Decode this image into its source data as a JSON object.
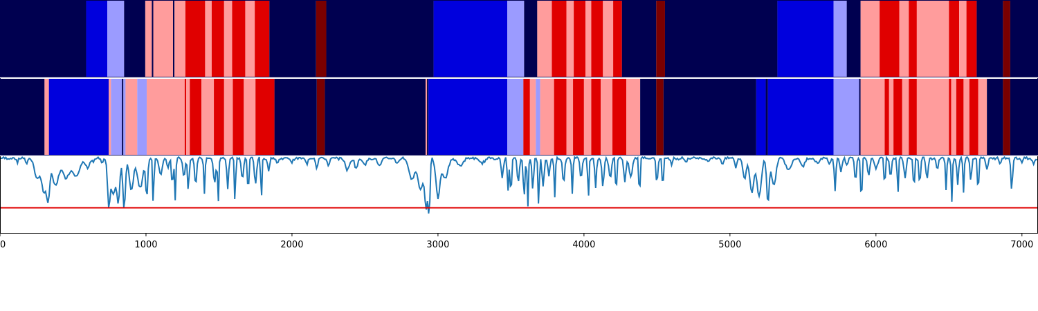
{
  "colors": {
    "dark_navy": "#000050",
    "blue": "#0000dd",
    "light_blue": "#9b9bff",
    "pink": "#ff9c9c",
    "red": "#e00000",
    "dark_red": "#7a0000",
    "line": "#1f77b4",
    "threshold": "#e00000"
  },
  "chart_data": {
    "type": "area",
    "xlim": [
      0,
      7110
    ],
    "x_ticks": [
      "0",
      "1000",
      "2000",
      "3000",
      "4000",
      "5000",
      "6000",
      "7000"
    ],
    "x_tick_values": [
      0,
      1000,
      2000,
      3000,
      4000,
      5000,
      6000,
      7000
    ],
    "state_tracks": [
      {
        "segments": [
          [
            0,
            590,
            "dark_navy"
          ],
          [
            590,
            735,
            "blue"
          ],
          [
            735,
            850,
            "light_blue"
          ],
          [
            850,
            995,
            "dark_navy"
          ],
          [
            995,
            1040,
            "pink"
          ],
          [
            1040,
            1050,
            "dark_navy"
          ],
          [
            1050,
            1185,
            "pink"
          ],
          [
            1185,
            1195,
            "dark_navy"
          ],
          [
            1195,
            1270,
            "pink"
          ],
          [
            1270,
            1405,
            "red"
          ],
          [
            1405,
            1450,
            "pink"
          ],
          [
            1450,
            1535,
            "red"
          ],
          [
            1535,
            1590,
            "pink"
          ],
          [
            1590,
            1680,
            "red"
          ],
          [
            1680,
            1745,
            "pink"
          ],
          [
            1745,
            1845,
            "red"
          ],
          [
            1845,
            2165,
            "dark_navy"
          ],
          [
            2165,
            2235,
            "dark_red"
          ],
          [
            2235,
            2970,
            "dark_navy"
          ],
          [
            2970,
            3475,
            "blue"
          ],
          [
            3475,
            3590,
            "light_blue"
          ],
          [
            3590,
            3680,
            "dark_navy"
          ],
          [
            3680,
            3780,
            "pink"
          ],
          [
            3780,
            3880,
            "red"
          ],
          [
            3880,
            3930,
            "pink"
          ],
          [
            3930,
            4010,
            "red"
          ],
          [
            4010,
            4050,
            "pink"
          ],
          [
            4050,
            4130,
            "red"
          ],
          [
            4130,
            4200,
            "pink"
          ],
          [
            4200,
            4260,
            "red"
          ],
          [
            4260,
            4495,
            "dark_navy"
          ],
          [
            4495,
            4555,
            "dark_red"
          ],
          [
            4555,
            5325,
            "dark_navy"
          ],
          [
            5325,
            5710,
            "blue"
          ],
          [
            5710,
            5800,
            "light_blue"
          ],
          [
            5800,
            5895,
            "dark_navy"
          ],
          [
            5895,
            6025,
            "pink"
          ],
          [
            6025,
            6160,
            "red"
          ],
          [
            6160,
            6225,
            "pink"
          ],
          [
            6225,
            6280,
            "red"
          ],
          [
            6280,
            6500,
            "pink"
          ],
          [
            6500,
            6570,
            "red"
          ],
          [
            6570,
            6620,
            "pink"
          ],
          [
            6620,
            6690,
            "red"
          ],
          [
            6690,
            6870,
            "dark_navy"
          ],
          [
            6870,
            6920,
            "dark_red"
          ],
          [
            6920,
            7110,
            "dark_navy"
          ]
        ]
      },
      {
        "segments": [
          [
            0,
            305,
            "dark_navy"
          ],
          [
            305,
            335,
            "pink"
          ],
          [
            335,
            745,
            "blue"
          ],
          [
            745,
            760,
            "pink"
          ],
          [
            760,
            835,
            "light_blue"
          ],
          [
            835,
            845,
            "dark_navy"
          ],
          [
            845,
            860,
            "light_blue"
          ],
          [
            860,
            940,
            "pink"
          ],
          [
            940,
            1005,
            "light_blue"
          ],
          [
            1005,
            1265,
            "pink"
          ],
          [
            1265,
            1275,
            "red"
          ],
          [
            1275,
            1300,
            "pink"
          ],
          [
            1300,
            1380,
            "red"
          ],
          [
            1380,
            1465,
            "pink"
          ],
          [
            1465,
            1535,
            "red"
          ],
          [
            1535,
            1595,
            "pink"
          ],
          [
            1595,
            1670,
            "red"
          ],
          [
            1670,
            1750,
            "pink"
          ],
          [
            1750,
            1880,
            "red"
          ],
          [
            1880,
            2170,
            "dark_navy"
          ],
          [
            2170,
            2225,
            "dark_red"
          ],
          [
            2225,
            2915,
            "dark_navy"
          ],
          [
            2915,
            2925,
            "pink"
          ],
          [
            2925,
            2935,
            "dark_navy"
          ],
          [
            2935,
            3475,
            "blue"
          ],
          [
            3475,
            3585,
            "light_blue"
          ],
          [
            3585,
            3630,
            "red"
          ],
          [
            3630,
            3670,
            "pink"
          ],
          [
            3670,
            3700,
            "light_blue"
          ],
          [
            3700,
            3795,
            "pink"
          ],
          [
            3795,
            3880,
            "red"
          ],
          [
            3880,
            3925,
            "pink"
          ],
          [
            3925,
            4000,
            "red"
          ],
          [
            4000,
            4050,
            "pink"
          ],
          [
            4050,
            4115,
            "red"
          ],
          [
            4115,
            4195,
            "pink"
          ],
          [
            4195,
            4290,
            "red"
          ],
          [
            4290,
            4385,
            "pink"
          ],
          [
            4385,
            4495,
            "dark_navy"
          ],
          [
            4495,
            4545,
            "dark_red"
          ],
          [
            4545,
            5180,
            "dark_navy"
          ],
          [
            5180,
            5245,
            "blue"
          ],
          [
            5245,
            5260,
            "dark_navy"
          ],
          [
            5260,
            5710,
            "blue"
          ],
          [
            5710,
            5885,
            "light_blue"
          ],
          [
            5885,
            5895,
            "dark_navy"
          ],
          [
            5895,
            6060,
            "pink"
          ],
          [
            6060,
            6090,
            "red"
          ],
          [
            6090,
            6120,
            "pink"
          ],
          [
            6120,
            6180,
            "red"
          ],
          [
            6180,
            6225,
            "pink"
          ],
          [
            6225,
            6280,
            "red"
          ],
          [
            6280,
            6500,
            "pink"
          ],
          [
            6500,
            6515,
            "red"
          ],
          [
            6515,
            6550,
            "pink"
          ],
          [
            6550,
            6600,
            "red"
          ],
          [
            6600,
            6640,
            "pink"
          ],
          [
            6640,
            6700,
            "red"
          ],
          [
            6700,
            6760,
            "pink"
          ],
          [
            6760,
            6870,
            "dark_navy"
          ],
          [
            6870,
            6920,
            "dark_red"
          ],
          [
            6920,
            7110,
            "dark_navy"
          ]
        ]
      }
    ],
    "line_series": {
      "ylim": [
        -0.05,
        1.0
      ],
      "threshold": 0.3,
      "baseline": 0.98,
      "dips": [
        [
          120,
          0.92,
          8
        ],
        [
          180,
          0.9,
          10
        ],
        [
          255,
          0.7,
          25
        ],
        [
          300,
          0.52,
          20
        ],
        [
          330,
          0.45,
          15
        ],
        [
          380,
          0.6,
          30
        ],
        [
          450,
          0.72,
          30
        ],
        [
          520,
          0.75,
          40
        ],
        [
          600,
          0.85,
          20
        ],
        [
          640,
          0.93,
          12
        ],
        [
          700,
          0.9,
          10
        ],
        [
          745,
          0.35,
          12
        ],
        [
          775,
          0.48,
          20
        ],
        [
          810,
          0.4,
          15
        ],
        [
          850,
          0.28,
          12
        ],
        [
          900,
          0.55,
          20
        ],
        [
          960,
          0.58,
          25
        ],
        [
          1005,
          0.45,
          10
        ],
        [
          1050,
          0.32,
          6
        ],
        [
          1100,
          0.75,
          15
        ],
        [
          1150,
          0.85,
          10
        ],
        [
          1180,
          0.6,
          8
        ],
        [
          1200,
          0.42,
          6
        ],
        [
          1260,
          0.72,
          10
        ],
        [
          1290,
          0.55,
          8
        ],
        [
          1340,
          0.62,
          10
        ],
        [
          1400,
          0.48,
          6
        ],
        [
          1470,
          0.65,
          12
        ],
        [
          1495,
          0.38,
          6
        ],
        [
          1560,
          0.55,
          8
        ],
        [
          1610,
          0.38,
          6
        ],
        [
          1660,
          0.68,
          10
        ],
        [
          1700,
          0.45,
          6
        ],
        [
          1750,
          0.62,
          10
        ],
        [
          1790,
          0.4,
          6
        ],
        [
          1840,
          0.82,
          10
        ],
        [
          1900,
          0.9,
          10
        ],
        [
          2000,
          0.92,
          10
        ],
        [
          2100,
          0.9,
          10
        ],
        [
          2170,
          0.85,
          10
        ],
        [
          2250,
          0.88,
          12
        ],
        [
          2380,
          0.82,
          20
        ],
        [
          2440,
          0.84,
          15
        ],
        [
          2500,
          0.9,
          20
        ],
        [
          2600,
          0.88,
          20
        ],
        [
          2720,
          0.92,
          15
        ],
        [
          2820,
          0.68,
          25
        ],
        [
          2880,
          0.55,
          25
        ],
        [
          2920,
          0.32,
          15
        ],
        [
          2940,
          0.3,
          8
        ],
        [
          3000,
          0.45,
          20
        ],
        [
          3050,
          0.7,
          25
        ],
        [
          3150,
          0.88,
          30
        ],
        [
          3300,
          0.92,
          30
        ],
        [
          3440,
          0.72,
          10
        ],
        [
          3480,
          0.55,
          8
        ],
        [
          3500,
          0.4,
          6
        ],
        [
          3550,
          0.65,
          10
        ],
        [
          3590,
          0.45,
          8
        ],
        [
          3615,
          0.3,
          6
        ],
        [
          3650,
          0.55,
          8
        ],
        [
          3690,
          0.28,
          6
        ],
        [
          3720,
          0.6,
          10
        ],
        [
          3760,
          0.75,
          10
        ],
        [
          3800,
          0.45,
          6
        ],
        [
          3860,
          0.65,
          10
        ],
        [
          3920,
          0.5,
          6
        ],
        [
          3980,
          0.72,
          10
        ],
        [
          4030,
          0.42,
          6
        ],
        [
          4080,
          0.58,
          8
        ],
        [
          4130,
          0.6,
          10
        ],
        [
          4180,
          0.72,
          12
        ],
        [
          4220,
          0.45,
          6
        ],
        [
          4280,
          0.65,
          10
        ],
        [
          4320,
          0.72,
          15
        ],
        [
          4380,
          0.42,
          6
        ],
        [
          4500,
          0.62,
          8
        ],
        [
          4540,
          0.52,
          6
        ],
        [
          4600,
          0.9,
          10
        ],
        [
          4700,
          0.93,
          10
        ],
        [
          4850,
          0.94,
          10
        ],
        [
          4950,
          0.9,
          10
        ],
        [
          5040,
          0.85,
          10
        ],
        [
          5100,
          0.7,
          15
        ],
        [
          5150,
          0.52,
          20
        ],
        [
          5200,
          0.45,
          20
        ],
        [
          5260,
          0.38,
          12
        ],
        [
          5300,
          0.6,
          20
        ],
        [
          5400,
          0.82,
          25
        ],
        [
          5500,
          0.88,
          20
        ],
        [
          5600,
          0.92,
          20
        ],
        [
          5680,
          0.9,
          10
        ],
        [
          5720,
          0.55,
          8
        ],
        [
          5760,
          0.8,
          10
        ],
        [
          5800,
          0.88,
          10
        ],
        [
          5860,
          0.65,
          8
        ],
        [
          5900,
          0.3,
          6
        ],
        [
          5950,
          0.75,
          10
        ],
        [
          6000,
          0.85,
          15
        ],
        [
          6060,
          0.55,
          6
        ],
        [
          6100,
          0.72,
          10
        ],
        [
          6150,
          0.48,
          6
        ],
        [
          6200,
          0.7,
          10
        ],
        [
          6260,
          0.5,
          6
        ],
        [
          6300,
          0.62,
          8
        ],
        [
          6350,
          0.7,
          10
        ],
        [
          6420,
          0.82,
          10
        ],
        [
          6480,
          0.55,
          6
        ],
        [
          6520,
          0.4,
          6
        ],
        [
          6560,
          0.62,
          8
        ],
        [
          6600,
          0.52,
          6
        ],
        [
          6650,
          0.68,
          8
        ],
        [
          6700,
          0.45,
          6
        ],
        [
          6760,
          0.82,
          10
        ],
        [
          6850,
          0.9,
          10
        ],
        [
          6930,
          0.55,
          8
        ],
        [
          7000,
          0.92,
          10
        ],
        [
          7080,
          0.9,
          10
        ]
      ]
    }
  }
}
